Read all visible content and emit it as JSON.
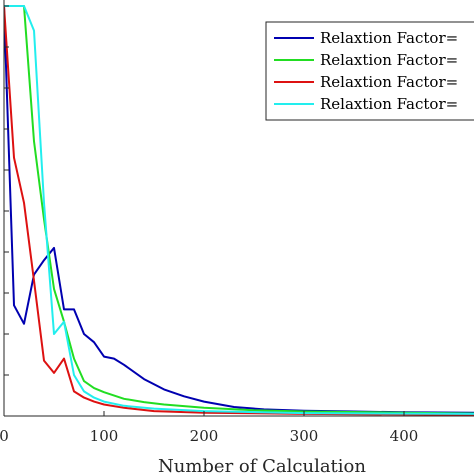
{
  "chart_data": {
    "type": "line",
    "xlabel": "Number of Calculation",
    "ylabel": "",
    "xlim": [
      0,
      470
    ],
    "ylim": [
      0,
      1
    ],
    "x_ticks": [
      "0",
      "100",
      "200",
      "300",
      "400"
    ],
    "legend_position": "top-right",
    "series": [
      {
        "name": "Relaxtion Factor=",
        "color": "#0000b0",
        "x": [
          0,
          10,
          20,
          30,
          40,
          50,
          60,
          70,
          80,
          90,
          100,
          110,
          120,
          140,
          160,
          180,
          200,
          230,
          260,
          300,
          350,
          400,
          470
        ],
        "y": [
          1.0,
          0.27,
          0.225,
          0.345,
          0.38,
          0.41,
          0.26,
          0.26,
          0.2,
          0.18,
          0.145,
          0.14,
          0.125,
          0.09,
          0.065,
          0.048,
          0.035,
          0.022,
          0.016,
          0.013,
          0.011,
          0.009,
          0.008
        ]
      },
      {
        "name": "Relaxtion Factor=",
        "color": "#22dd22",
        "x": [
          0,
          20,
          30,
          40,
          50,
          60,
          70,
          80,
          90,
          100,
          120,
          140,
          160,
          200,
          250,
          300,
          400,
          470
        ],
        "y": [
          1.0,
          1.0,
          0.67,
          0.48,
          0.31,
          0.23,
          0.14,
          0.085,
          0.068,
          0.058,
          0.042,
          0.034,
          0.028,
          0.02,
          0.014,
          0.011,
          0.008,
          0.006
        ]
      },
      {
        "name": "Relaxtion Factor=",
        "color": "#dd1111",
        "x": [
          0,
          10,
          20,
          30,
          40,
          50,
          60,
          70,
          80,
          90,
          100,
          120,
          150,
          200,
          300,
          470
        ],
        "y": [
          1.0,
          0.63,
          0.52,
          0.33,
          0.135,
          0.105,
          0.14,
          0.06,
          0.045,
          0.035,
          0.028,
          0.02,
          0.012,
          0.008,
          0.005,
          0.003
        ]
      },
      {
        "name": "Relaxtion Factor=",
        "color": "#22eeee",
        "x": [
          0,
          10,
          20,
          30,
          40,
          50,
          60,
          70,
          80,
          90,
          100,
          120,
          150,
          200,
          300,
          470
        ],
        "y": [
          1.0,
          1.0,
          1.0,
          0.94,
          0.52,
          0.2,
          0.23,
          0.1,
          0.06,
          0.045,
          0.035,
          0.025,
          0.018,
          0.012,
          0.007,
          0.005
        ]
      }
    ]
  }
}
